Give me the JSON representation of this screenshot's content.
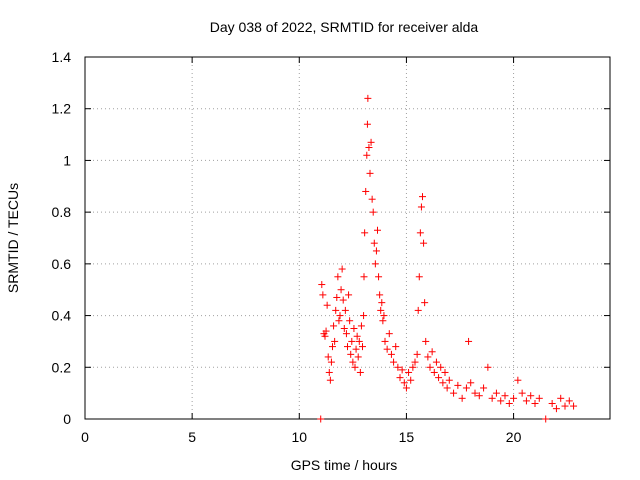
{
  "chart_data": {
    "type": "scatter",
    "title": "Day 038 of 2022, SRMTID for receiver alda",
    "xlabel": "GPS time / hours",
    "ylabel": "SRMTID / TECUs",
    "xlim": [
      0,
      24.5
    ],
    "ylim": [
      0,
      1.4
    ],
    "grid": true,
    "x_ticks": [
      0,
      5,
      10,
      15,
      20
    ],
    "x_tick_labels": [
      "0",
      "5",
      "10",
      "15",
      "20"
    ],
    "y_ticks": [
      0,
      0.2,
      0.4,
      0.6,
      0.8,
      1.0,
      1.2,
      1.4
    ],
    "y_tick_labels": [
      "0",
      "0.2",
      "0.4",
      "0.6",
      "0.8",
      "1",
      "1.2",
      "1.4"
    ],
    "marker": "+",
    "color": "#ff0000",
    "series": [
      {
        "name": "SRMTID",
        "points": [
          [
            11.0,
            0.0
          ],
          [
            11.05,
            0.52
          ],
          [
            11.1,
            0.48
          ],
          [
            11.15,
            0.33
          ],
          [
            11.2,
            0.32
          ],
          [
            11.25,
            0.34
          ],
          [
            11.3,
            0.44
          ],
          [
            11.35,
            0.24
          ],
          [
            11.4,
            0.18
          ],
          [
            11.45,
            0.15
          ],
          [
            11.5,
            0.22
          ],
          [
            11.55,
            0.28
          ],
          [
            11.6,
            0.36
          ],
          [
            11.65,
            0.3
          ],
          [
            11.7,
            0.42
          ],
          [
            11.75,
            0.47
          ],
          [
            11.8,
            0.55
          ],
          [
            11.85,
            0.38
          ],
          [
            11.9,
            0.4
          ],
          [
            11.95,
            0.5
          ],
          [
            12.0,
            0.58
          ],
          [
            12.05,
            0.46
          ],
          [
            12.1,
            0.35
          ],
          [
            12.15,
            0.42
          ],
          [
            12.2,
            0.33
          ],
          [
            12.25,
            0.28
          ],
          [
            12.3,
            0.48
          ],
          [
            12.35,
            0.38
          ],
          [
            12.4,
            0.25
          ],
          [
            12.45,
            0.3
          ],
          [
            12.5,
            0.22
          ],
          [
            12.55,
            0.35
          ],
          [
            12.6,
            0.2
          ],
          [
            12.65,
            0.27
          ],
          [
            12.7,
            0.32
          ],
          [
            12.75,
            0.24
          ],
          [
            12.8,
            0.3
          ],
          [
            12.85,
            0.18
          ],
          [
            12.9,
            0.36
          ],
          [
            12.95,
            0.28
          ],
          [
            13.0,
            0.4
          ],
          [
            13.02,
            0.55
          ],
          [
            13.05,
            0.72
          ],
          [
            13.1,
            0.88
          ],
          [
            13.15,
            1.02
          ],
          [
            13.18,
            1.14
          ],
          [
            13.2,
            1.24
          ],
          [
            13.25,
            1.05
          ],
          [
            13.3,
            0.95
          ],
          [
            13.35,
            1.07
          ],
          [
            13.4,
            0.85
          ],
          [
            13.45,
            0.8
          ],
          [
            13.5,
            0.68
          ],
          [
            13.55,
            0.6
          ],
          [
            13.6,
            0.65
          ],
          [
            13.65,
            0.73
          ],
          [
            13.7,
            0.55
          ],
          [
            13.75,
            0.48
          ],
          [
            13.8,
            0.42
          ],
          [
            13.85,
            0.45
          ],
          [
            13.9,
            0.38
          ],
          [
            13.95,
            0.4
          ],
          [
            14.0,
            0.3
          ],
          [
            14.1,
            0.27
          ],
          [
            14.2,
            0.33
          ],
          [
            14.3,
            0.25
          ],
          [
            14.4,
            0.22
          ],
          [
            14.5,
            0.28
          ],
          [
            14.6,
            0.2
          ],
          [
            14.7,
            0.16
          ],
          [
            14.8,
            0.19
          ],
          [
            14.9,
            0.14
          ],
          [
            15.0,
            0.12
          ],
          [
            15.1,
            0.18
          ],
          [
            15.2,
            0.15
          ],
          [
            15.3,
            0.2
          ],
          [
            15.4,
            0.22
          ],
          [
            15.5,
            0.25
          ],
          [
            15.55,
            0.42
          ],
          [
            15.6,
            0.55
          ],
          [
            15.65,
            0.72
          ],
          [
            15.7,
            0.82
          ],
          [
            15.75,
            0.86
          ],
          [
            15.8,
            0.68
          ],
          [
            15.85,
            0.45
          ],
          [
            15.9,
            0.3
          ],
          [
            16.0,
            0.24
          ],
          [
            16.1,
            0.2
          ],
          [
            16.2,
            0.26
          ],
          [
            16.3,
            0.18
          ],
          [
            16.4,
            0.22
          ],
          [
            16.5,
            0.16
          ],
          [
            16.6,
            0.2
          ],
          [
            16.7,
            0.14
          ],
          [
            16.8,
            0.18
          ],
          [
            16.9,
            0.12
          ],
          [
            17.0,
            0.15
          ],
          [
            17.2,
            0.1
          ],
          [
            17.4,
            0.13
          ],
          [
            17.6,
            0.08
          ],
          [
            17.8,
            0.12
          ],
          [
            17.9,
            0.3
          ],
          [
            18.0,
            0.14
          ],
          [
            18.2,
            0.1
          ],
          [
            18.4,
            0.09
          ],
          [
            18.6,
            0.12
          ],
          [
            18.8,
            0.2
          ],
          [
            19.0,
            0.08
          ],
          [
            19.2,
            0.1
          ],
          [
            19.4,
            0.07
          ],
          [
            19.6,
            0.09
          ],
          [
            19.8,
            0.06
          ],
          [
            20.0,
            0.08
          ],
          [
            20.2,
            0.15
          ],
          [
            20.4,
            0.1
          ],
          [
            20.6,
            0.07
          ],
          [
            20.8,
            0.09
          ],
          [
            21.0,
            0.06
          ],
          [
            21.2,
            0.08
          ],
          [
            21.5,
            0.0
          ],
          [
            21.8,
            0.06
          ],
          [
            22.0,
            0.04
          ],
          [
            22.2,
            0.08
          ],
          [
            22.4,
            0.05
          ],
          [
            22.6,
            0.07
          ],
          [
            22.8,
            0.05
          ]
        ]
      }
    ]
  }
}
